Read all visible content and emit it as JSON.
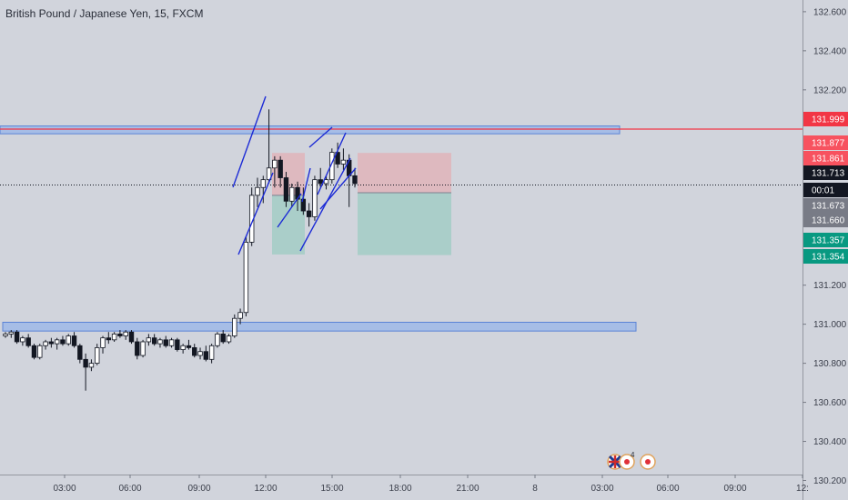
{
  "chart_data": {
    "type": "candlestick",
    "title": "British Pound / Japanese Yen, 15, FXCM",
    "ylim": [
      130.1,
      132.66
    ],
    "y_ticks": [
      "132.600",
      "132.400",
      "132.200",
      "131.200",
      "131.000",
      "130.800",
      "130.600",
      "130.400",
      "130.200"
    ],
    "x_ticks": [
      "03:00",
      "06:00",
      "09:00",
      "12:00",
      "15:00",
      "18:00",
      "21:00",
      "8",
      "03:00",
      "06:00",
      "09:00",
      "12:"
    ],
    "price_tags": [
      {
        "value": "131.999",
        "color": "#f23645"
      },
      {
        "value": "131.877",
        "color": "#f7525f"
      },
      {
        "value": "131.861",
        "color": "#f7525f"
      },
      {
        "value": "131.713",
        "color": "#131722"
      },
      {
        "value": "00:01",
        "color": "#131722"
      },
      {
        "value": "131.673",
        "color": "#787b86"
      },
      {
        "value": "131.660",
        "color": "#787b86"
      },
      {
        "value": "131.357",
        "color": "#089981"
      },
      {
        "value": "131.354",
        "color": "#089981"
      }
    ],
    "current_price": 131.713,
    "resistance_line": 131.999,
    "zones": [
      {
        "low": 131.975,
        "high": 132.015
      },
      {
        "low": 130.965,
        "high": 131.01
      }
    ],
    "positions": [
      {
        "entry": 131.66,
        "stop": 131.877,
        "target": 131.357
      },
      {
        "entry": 131.673,
        "stop": 131.877,
        "target": 131.354
      }
    ],
    "candles_ohlc": [
      [
        130.94,
        130.96,
        130.93,
        130.95
      ],
      [
        130.95,
        130.97,
        130.93,
        130.96
      ],
      [
        130.96,
        130.97,
        130.9,
        130.91
      ],
      [
        130.91,
        130.94,
        130.89,
        130.93
      ],
      [
        130.93,
        130.95,
        130.88,
        130.89
      ],
      [
        130.89,
        130.9,
        130.82,
        130.83
      ],
      [
        130.83,
        130.9,
        130.82,
        130.89
      ],
      [
        130.89,
        130.92,
        130.87,
        130.91
      ],
      [
        130.91,
        130.93,
        130.88,
        130.9
      ],
      [
        130.9,
        130.93,
        130.87,
        130.92
      ],
      [
        130.92,
        130.94,
        130.89,
        130.9
      ],
      [
        130.9,
        130.95,
        130.89,
        130.94
      ],
      [
        130.94,
        130.96,
        130.88,
        130.89
      ],
      [
        130.89,
        130.9,
        130.8,
        130.82
      ],
      [
        130.82,
        130.85,
        130.66,
        130.78
      ],
      [
        130.78,
        130.82,
        130.76,
        130.8
      ],
      [
        130.8,
        130.9,
        130.79,
        130.88
      ],
      [
        130.88,
        130.94,
        130.85,
        130.93
      ],
      [
        130.93,
        130.96,
        130.9,
        130.92
      ],
      [
        130.92,
        130.96,
        130.91,
        130.95
      ],
      [
        130.95,
        130.97,
        130.93,
        130.94
      ],
      [
        130.94,
        130.97,
        130.92,
        130.96
      ],
      [
        130.96,
        130.97,
        130.9,
        130.91
      ],
      [
        130.91,
        130.93,
        130.82,
        130.84
      ],
      [
        130.84,
        130.92,
        130.83,
        130.91
      ],
      [
        130.91,
        130.95,
        130.89,
        130.93
      ],
      [
        130.93,
        130.95,
        130.89,
        130.9
      ],
      [
        130.9,
        130.93,
        130.88,
        130.92
      ],
      [
        130.92,
        130.94,
        130.88,
        130.89
      ],
      [
        130.89,
        130.93,
        130.88,
        130.92
      ],
      [
        130.92,
        130.93,
        130.86,
        130.87
      ],
      [
        130.87,
        130.9,
        130.85,
        130.89
      ],
      [
        130.89,
        130.92,
        130.87,
        130.88
      ],
      [
        130.88,
        130.9,
        130.83,
        130.84
      ],
      [
        130.84,
        130.88,
        130.82,
        130.86
      ],
      [
        130.86,
        130.89,
        130.81,
        130.82
      ],
      [
        130.82,
        130.9,
        130.8,
        130.89
      ],
      [
        130.89,
        130.96,
        130.88,
        130.95
      ],
      [
        130.95,
        130.97,
        130.9,
        130.91
      ],
      [
        130.91,
        130.95,
        130.9,
        130.94
      ],
      [
        130.94,
        131.05,
        130.93,
        131.03
      ],
      [
        131.03,
        131.08,
        131.0,
        131.06
      ],
      [
        131.06,
        131.45,
        131.04,
        131.42
      ],
      [
        131.42,
        131.7,
        131.4,
        131.66
      ],
      [
        131.66,
        131.75,
        131.6,
        131.7
      ],
      [
        131.7,
        131.76,
        131.62,
        131.74
      ],
      [
        131.74,
        132.1,
        131.72,
        131.8
      ],
      [
        131.8,
        131.86,
        131.7,
        131.84
      ],
      [
        131.84,
        131.86,
        131.7,
        131.75
      ],
      [
        131.75,
        131.78,
        131.6,
        131.63
      ],
      [
        131.63,
        131.72,
        131.6,
        131.7
      ],
      [
        131.7,
        131.73,
        131.58,
        131.64
      ],
      [
        131.64,
        131.7,
        131.56,
        131.58
      ],
      [
        131.58,
        131.62,
        131.5,
        131.55
      ],
      [
        131.55,
        131.76,
        131.53,
        131.74
      ],
      [
        131.74,
        131.8,
        131.7,
        131.72
      ],
      [
        131.72,
        131.76,
        131.69,
        131.74
      ],
      [
        131.74,
        131.9,
        131.72,
        131.88
      ],
      [
        131.88,
        131.93,
        131.8,
        131.82
      ],
      [
        131.82,
        131.9,
        131.79,
        131.84
      ],
      [
        131.84,
        131.87,
        131.6,
        131.76
      ],
      [
        131.76,
        131.8,
        131.7,
        131.72
      ]
    ]
  },
  "event_badges": {
    "count": "4"
  }
}
